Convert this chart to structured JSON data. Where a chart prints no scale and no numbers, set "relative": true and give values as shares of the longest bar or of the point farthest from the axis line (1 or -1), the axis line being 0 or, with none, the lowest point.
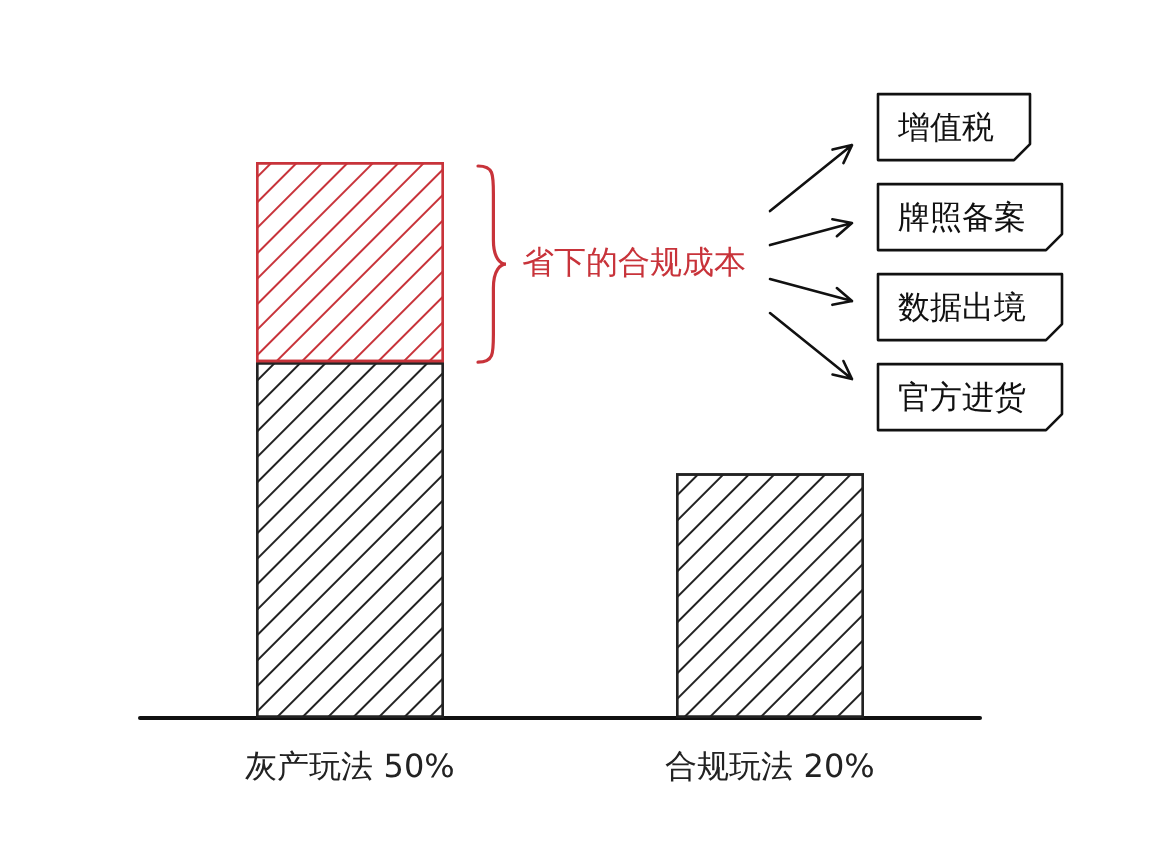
{
  "chart_data": {
    "type": "bar",
    "categories": [
      "灰产玩法 50%",
      "合规玩法 20%"
    ],
    "relative": true,
    "stacked": true,
    "series": [
      {
        "color": "#222222",
        "values": [
          0.64,
          0.44
        ]
      },
      {
        "name": "省下的合规成本",
        "color": "#c8333a",
        "values": [
          0.36,
          null
        ]
      }
    ],
    "annotations": [
      "增值税",
      "牌照备案",
      "数据出境",
      "官方进货"
    ]
  }
}
